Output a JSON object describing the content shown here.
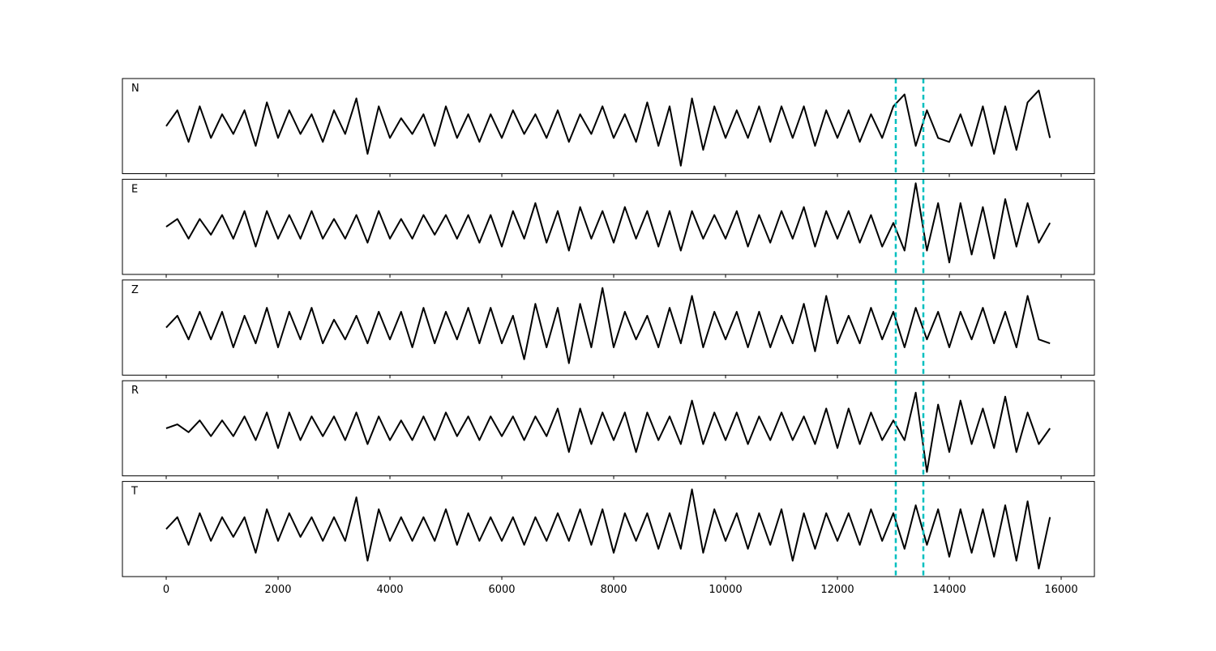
{
  "chart_data": {
    "type": "line",
    "subplots": true,
    "x": [
      0,
      200,
      400,
      600,
      800,
      1000,
      1200,
      1400,
      1600,
      1800,
      2000,
      2200,
      2400,
      2600,
      2800,
      3000,
      3200,
      3400,
      3600,
      3800,
      4000,
      4200,
      4400,
      4600,
      4800,
      5000,
      5200,
      5400,
      5600,
      5800,
      6000,
      6200,
      6400,
      6600,
      6800,
      7000,
      7200,
      7400,
      7600,
      7800,
      8000,
      8200,
      8400,
      8600,
      8800,
      9000,
      9200,
      9400,
      9600,
      9800,
      10000,
      10200,
      10400,
      10600,
      10800,
      11000,
      11200,
      11400,
      11600,
      11800,
      12000,
      12200,
      12400,
      12600,
      12800,
      13000,
      13200,
      13400,
      13600,
      13800,
      14000,
      14200,
      14400,
      14600,
      14800,
      15000,
      15200,
      15400,
      15600,
      15800
    ],
    "series": [
      {
        "name": "N",
        "color": "#000000",
        "values": [
          0,
          0.4,
          -0.4,
          0.5,
          -0.3,
          0.3,
          -0.2,
          0.4,
          -0.5,
          0.6,
          -0.3,
          0.4,
          -0.2,
          0.3,
          -0.4,
          0.4,
          -0.2,
          0.7,
          -0.7,
          0.5,
          -0.3,
          0.2,
          -0.2,
          0.3,
          -0.5,
          0.5,
          -0.3,
          0.3,
          -0.4,
          0.3,
          -0.3,
          0.4,
          -0.2,
          0.3,
          -0.3,
          0.4,
          -0.4,
          0.3,
          -0.2,
          0.5,
          -0.3,
          0.3,
          -0.4,
          0.6,
          -0.5,
          0.5,
          -1.0,
          0.7,
          -0.6,
          0.5,
          -0.3,
          0.4,
          -0.3,
          0.5,
          -0.4,
          0.5,
          -0.3,
          0.5,
          -0.5,
          0.4,
          -0.3,
          0.4,
          -0.4,
          0.3,
          -0.3,
          0.5,
          0.8,
          -0.5,
          0.4,
          -0.3,
          -0.4,
          0.3,
          -0.5,
          0.5,
          -0.7,
          0.5,
          -0.6,
          0.6,
          0.9,
          -0.3
        ]
      },
      {
        "name": "E",
        "color": "#000000",
        "values": [
          0,
          0.2,
          -0.3,
          0.2,
          -0.2,
          0.3,
          -0.3,
          0.4,
          -0.5,
          0.4,
          -0.3,
          0.3,
          -0.3,
          0.4,
          -0.3,
          0.2,
          -0.3,
          0.3,
          -0.4,
          0.4,
          -0.3,
          0.2,
          -0.3,
          0.3,
          -0.2,
          0.3,
          -0.3,
          0.3,
          -0.4,
          0.3,
          -0.5,
          0.4,
          -0.3,
          0.6,
          -0.4,
          0.4,
          -0.6,
          0.5,
          -0.3,
          0.4,
          -0.4,
          0.5,
          -0.3,
          0.4,
          -0.5,
          0.4,
          -0.6,
          0.4,
          -0.3,
          0.3,
          -0.3,
          0.4,
          -0.5,
          0.3,
          -0.4,
          0.4,
          -0.3,
          0.5,
          -0.5,
          0.4,
          -0.3,
          0.4,
          -0.4,
          0.3,
          -0.5,
          0.1,
          -0.6,
          1.1,
          -0.6,
          0.6,
          -0.9,
          0.6,
          -0.7,
          0.5,
          -0.8,
          0.7,
          -0.5,
          0.6,
          -0.4,
          0.1
        ]
      },
      {
        "name": "Z",
        "color": "#000000",
        "values": [
          0,
          0.3,
          -0.3,
          0.4,
          -0.3,
          0.4,
          -0.5,
          0.3,
          -0.4,
          0.5,
          -0.5,
          0.4,
          -0.3,
          0.5,
          -0.4,
          0.2,
          -0.3,
          0.3,
          -0.4,
          0.4,
          -0.3,
          0.4,
          -0.5,
          0.5,
          -0.4,
          0.4,
          -0.3,
          0.5,
          -0.4,
          0.5,
          -0.4,
          0.3,
          -0.8,
          0.6,
          -0.5,
          0.5,
          -0.9,
          0.6,
          -0.5,
          1.0,
          -0.5,
          0.4,
          -0.3,
          0.3,
          -0.5,
          0.5,
          -0.4,
          0.8,
          -0.5,
          0.4,
          -0.3,
          0.4,
          -0.5,
          0.4,
          -0.5,
          0.3,
          -0.4,
          0.6,
          -0.6,
          0.8,
          -0.4,
          0.3,
          -0.4,
          0.5,
          -0.3,
          0.4,
          -0.5,
          0.5,
          -0.3,
          0.4,
          -0.5,
          0.4,
          -0.3,
          0.5,
          -0.4,
          0.4,
          -0.5,
          0.8,
          -0.3,
          -0.4
        ]
      },
      {
        "name": "R",
        "color": "#000000",
        "values": [
          0,
          0.1,
          -0.1,
          0.2,
          -0.2,
          0.2,
          -0.2,
          0.3,
          -0.3,
          0.4,
          -0.5,
          0.4,
          -0.3,
          0.3,
          -0.2,
          0.3,
          -0.3,
          0.4,
          -0.4,
          0.3,
          -0.3,
          0.2,
          -0.3,
          0.3,
          -0.3,
          0.4,
          -0.2,
          0.3,
          -0.3,
          0.3,
          -0.2,
          0.3,
          -0.3,
          0.3,
          -0.2,
          0.5,
          -0.6,
          0.5,
          -0.4,
          0.4,
          -0.3,
          0.4,
          -0.6,
          0.4,
          -0.3,
          0.3,
          -0.4,
          0.7,
          -0.4,
          0.4,
          -0.3,
          0.4,
          -0.4,
          0.3,
          -0.3,
          0.4,
          -0.3,
          0.3,
          -0.4,
          0.5,
          -0.5,
          0.5,
          -0.4,
          0.4,
          -0.3,
          0.2,
          -0.3,
          0.9,
          -1.1,
          0.6,
          -0.6,
          0.7,
          -0.4,
          0.5,
          -0.5,
          0.8,
          -0.6,
          0.4,
          -0.4,
          0.0
        ]
      },
      {
        "name": "T",
        "color": "#000000",
        "values": [
          0,
          0.3,
          -0.4,
          0.4,
          -0.3,
          0.3,
          -0.2,
          0.3,
          -0.6,
          0.5,
          -0.3,
          0.4,
          -0.2,
          0.3,
          -0.3,
          0.3,
          -0.3,
          0.8,
          -0.8,
          0.5,
          -0.3,
          0.3,
          -0.3,
          0.3,
          -0.3,
          0.5,
          -0.4,
          0.4,
          -0.3,
          0.3,
          -0.3,
          0.3,
          -0.4,
          0.3,
          -0.3,
          0.4,
          -0.3,
          0.5,
          -0.4,
          0.5,
          -0.6,
          0.4,
          -0.3,
          0.4,
          -0.5,
          0.4,
          -0.5,
          1.0,
          -0.6,
          0.5,
          -0.3,
          0.4,
          -0.5,
          0.4,
          -0.4,
          0.5,
          -0.8,
          0.4,
          -0.5,
          0.4,
          -0.3,
          0.4,
          -0.4,
          0.5,
          -0.3,
          0.4,
          -0.5,
          0.6,
          -0.4,
          0.5,
          -0.7,
          0.5,
          -0.6,
          0.5,
          -0.7,
          0.6,
          -0.8,
          0.7,
          -1.0,
          0.3
        ]
      }
    ],
    "vlines": [
      13043,
      13536
    ],
    "vline_color": "#00bfbf",
    "xlim": [
      -783,
      16594
    ],
    "xticks": [
      0,
      2000,
      4000,
      6000,
      8000,
      10000,
      12000,
      14000,
      16000
    ],
    "ylim": [
      -1.2,
      1.2
    ]
  }
}
